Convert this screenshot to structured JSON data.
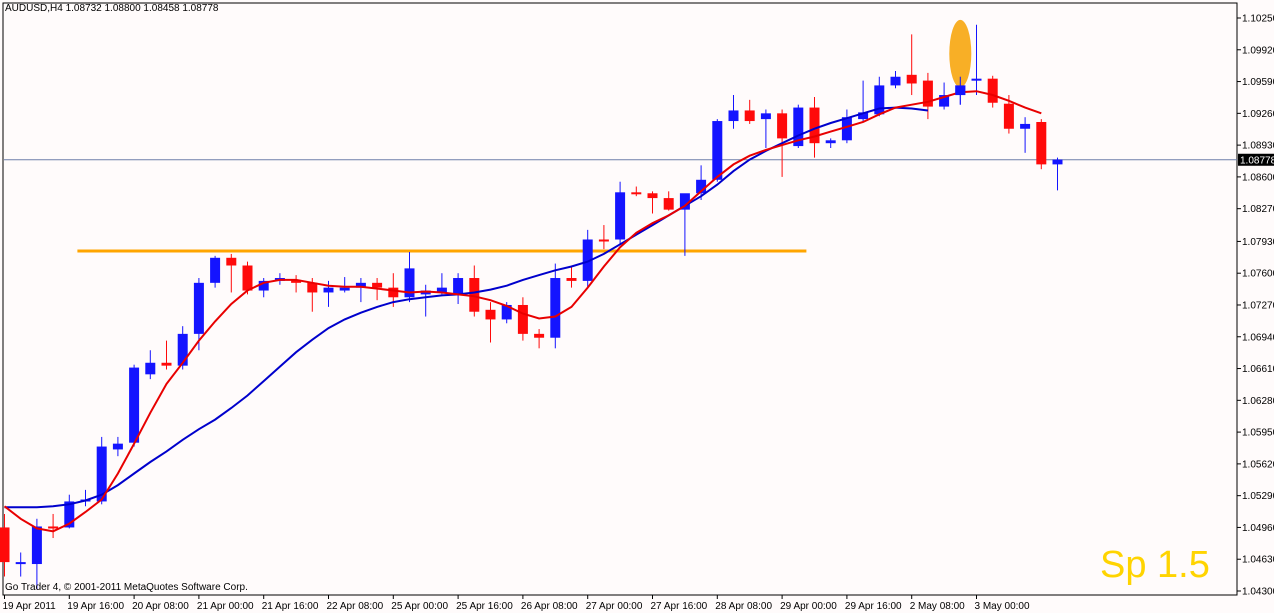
{
  "chart_title": "AUDUSD,H4  1.08732 1.08800 1.08458 1.08778",
  "copyright": "Go Trader 4, © 2001-2011 MetaQuotes Software Corp.",
  "spread_label": "Sp 1.5",
  "current_price_label": "1.08778",
  "colors": {
    "background": "#fffbfb",
    "bull_candle": "#1414ff",
    "bear_candle": "#ff0a0a",
    "fast_ma": "#e80000",
    "slow_ma": "#0000cc",
    "support_line": "#ffa500",
    "highlight_ellipse": "#f7a100",
    "current_price_line": "#6f7ea9",
    "spread_text": "#ffd400"
  },
  "chart_data": {
    "type": "candlestick",
    "symbol": "AUDUSD",
    "timeframe": "H4",
    "ylim": [
      1.043,
      1.1025
    ],
    "y_ticks": [
      "1.10250",
      "1.09920",
      "1.09590",
      "1.09260",
      "1.08930",
      "1.08600",
      "1.08270",
      "1.07930",
      "1.07600",
      "1.07270",
      "1.06940",
      "1.06610",
      "1.06280",
      "1.05950",
      "1.05620",
      "1.05290",
      "1.04960",
      "1.04630",
      "1.04300"
    ],
    "x_ticks": [
      {
        "label": "19 Apr 2011",
        "index": 0
      },
      {
        "label": "19 Apr 16:00",
        "index": 4
      },
      {
        "label": "20 Apr 08:00",
        "index": 8
      },
      {
        "label": "21 Apr 00:00",
        "index": 12
      },
      {
        "label": "21 Apr 16:00",
        "index": 16
      },
      {
        "label": "22 Apr 08:00",
        "index": 20
      },
      {
        "label": "25 Apr 00:00",
        "index": 24
      },
      {
        "label": "25 Apr 16:00",
        "index": 28
      },
      {
        "label": "26 Apr 08:00",
        "index": 32
      },
      {
        "label": "27 Apr 00:00",
        "index": 36
      },
      {
        "label": "27 Apr 16:00",
        "index": 40
      },
      {
        "label": "28 Apr 08:00",
        "index": 44
      },
      {
        "label": "29 Apr 00:00",
        "index": 48
      },
      {
        "label": "29 Apr 16:00",
        "index": 52
      },
      {
        "label": "2 May 08:00",
        "index": 56
      },
      {
        "label": "3 May 00:00",
        "index": 60
      }
    ],
    "candles": [
      {
        "o": 1.0496,
        "h": 1.051,
        "l": 1.0445,
        "c": 1.046
      },
      {
        "o": 1.046,
        "h": 1.047,
        "l": 1.0445,
        "c": 1.046
      },
      {
        "o": 1.0458,
        "h": 1.0505,
        "l": 1.0432,
        "c": 1.0497
      },
      {
        "o": 1.0497,
        "h": 1.051,
        "l": 1.0485,
        "c": 1.0495
      },
      {
        "o": 1.0496,
        "h": 1.053,
        "l": 1.0495,
        "c": 1.0523
      },
      {
        "o": 1.0523,
        "h": 1.0535,
        "l": 1.0518,
        "c": 1.0525
      },
      {
        "o": 1.0523,
        "h": 1.059,
        "l": 1.052,
        "c": 1.058
      },
      {
        "o": 1.0577,
        "h": 1.059,
        "l": 1.057,
        "c": 1.0583
      },
      {
        "o": 1.0584,
        "h": 1.0665,
        "l": 1.058,
        "c": 1.0662
      },
      {
        "o": 1.0655,
        "h": 1.068,
        "l": 1.065,
        "c": 1.0667
      },
      {
        "o": 1.0667,
        "h": 1.069,
        "l": 1.066,
        "c": 1.0664
      },
      {
        "o": 1.0664,
        "h": 1.0705,
        "l": 1.066,
        "c": 1.0697
      },
      {
        "o": 1.0697,
        "h": 1.0755,
        "l": 1.068,
        "c": 1.075
      },
      {
        "o": 1.075,
        "h": 1.0778,
        "l": 1.0745,
        "c": 1.0776
      },
      {
        "o": 1.0776,
        "h": 1.078,
        "l": 1.074,
        "c": 1.0768
      },
      {
        "o": 1.0768,
        "h": 1.0772,
        "l": 1.0738,
        "c": 1.0742
      },
      {
        "o": 1.0742,
        "h": 1.0755,
        "l": 1.0735,
        "c": 1.0752
      },
      {
        "o": 1.0752,
        "h": 1.076,
        "l": 1.0748,
        "c": 1.0755
      },
      {
        "o": 1.0753,
        "h": 1.0758,
        "l": 1.074,
        "c": 1.075
      },
      {
        "o": 1.075,
        "h": 1.0755,
        "l": 1.072,
        "c": 1.074
      },
      {
        "o": 1.074,
        "h": 1.0752,
        "l": 1.0725,
        "c": 1.0745
      },
      {
        "o": 1.0742,
        "h": 1.0756,
        "l": 1.074,
        "c": 1.0745
      },
      {
        "o": 1.0745,
        "h": 1.0755,
        "l": 1.073,
        "c": 1.075
      },
      {
        "o": 1.075,
        "h": 1.0755,
        "l": 1.0732,
        "c": 1.0745
      },
      {
        "o": 1.0745,
        "h": 1.076,
        "l": 1.0725,
        "c": 1.0735
      },
      {
        "o": 1.0735,
        "h": 1.0782,
        "l": 1.073,
        "c": 1.0765
      },
      {
        "o": 1.0738,
        "h": 1.0748,
        "l": 1.0715,
        "c": 1.0742
      },
      {
        "o": 1.074,
        "h": 1.076,
        "l": 1.0738,
        "c": 1.0745
      },
      {
        "o": 1.0738,
        "h": 1.076,
        "l": 1.0728,
        "c": 1.0755
      },
      {
        "o": 1.0755,
        "h": 1.0768,
        "l": 1.0715,
        "c": 1.072
      },
      {
        "o": 1.0722,
        "h": 1.073,
        "l": 1.0688,
        "c": 1.0712
      },
      {
        "o": 1.0712,
        "h": 1.073,
        "l": 1.0708,
        "c": 1.0727
      },
      {
        "o": 1.0727,
        "h": 1.0735,
        "l": 1.069,
        "c": 1.0697
      },
      {
        "o": 1.0697,
        "h": 1.0702,
        "l": 1.0682,
        "c": 1.0693
      },
      {
        "o": 1.0693,
        "h": 1.077,
        "l": 1.0682,
        "c": 1.0755
      },
      {
        "o": 1.0755,
        "h": 1.0768,
        "l": 1.0745,
        "c": 1.0752
      },
      {
        "o": 1.0752,
        "h": 1.0805,
        "l": 1.0745,
        "c": 1.0795
      },
      {
        "o": 1.0795,
        "h": 1.081,
        "l": 1.0785,
        "c": 1.0793
      },
      {
        "o": 1.0795,
        "h": 1.0855,
        "l": 1.079,
        "c": 1.0844
      },
      {
        "o": 1.0844,
        "h": 1.085,
        "l": 1.084,
        "c": 1.0842
      },
      {
        "o": 1.0843,
        "h": 1.0845,
        "l": 1.0822,
        "c": 1.0838
      },
      {
        "o": 1.0838,
        "h": 1.0845,
        "l": 1.0825,
        "c": 1.0826
      },
      {
        "o": 1.0826,
        "h": 1.0842,
        "l": 1.0778,
        "c": 1.0843
      },
      {
        "o": 1.0843,
        "h": 1.0872,
        "l": 1.0836,
        "c": 1.0857
      },
      {
        "o": 1.0857,
        "h": 1.092,
        "l": 1.0855,
        "c": 1.0918
      },
      {
        "o": 1.0918,
        "h": 1.0945,
        "l": 1.091,
        "c": 1.0929
      },
      {
        "o": 1.0929,
        "h": 1.094,
        "l": 1.0915,
        "c": 1.0918
      },
      {
        "o": 1.092,
        "h": 1.093,
        "l": 1.089,
        "c": 1.0926
      },
      {
        "o": 1.0926,
        "h": 1.093,
        "l": 1.086,
        "c": 1.09
      },
      {
        "o": 1.0892,
        "h": 1.0935,
        "l": 1.089,
        "c": 1.0932
      },
      {
        "o": 1.0932,
        "h": 1.0943,
        "l": 1.088,
        "c": 1.0895
      },
      {
        "o": 1.0895,
        "h": 1.09,
        "l": 1.089,
        "c": 1.0898
      },
      {
        "o": 1.0898,
        "h": 1.093,
        "l": 1.0895,
        "c": 1.0922
      },
      {
        "o": 1.092,
        "h": 1.096,
        "l": 1.0918,
        "c": 1.0927
      },
      {
        "o": 1.0925,
        "h": 1.0964,
        "l": 1.0923,
        "c": 1.0955
      },
      {
        "o": 1.0955,
        "h": 1.097,
        "l": 1.0952,
        "c": 1.0964
      },
      {
        "o": 1.0966,
        "h": 1.1008,
        "l": 1.0945,
        "c": 1.0957
      },
      {
        "o": 1.096,
        "h": 1.0968,
        "l": 1.092,
        "c": 1.0933
      },
      {
        "o": 1.0933,
        "h": 1.0958,
        "l": 1.093,
        "c": 1.0945
      },
      {
        "o": 1.0945,
        "h": 1.0964,
        "l": 1.0935,
        "c": 1.0955
      },
      {
        "o": 1.096,
        "h": 1.1018,
        "l": 1.0945,
        "c": 1.0962
      },
      {
        "o": 1.0962,
        "h": 1.0965,
        "l": 1.0932,
        "c": 1.0937
      },
      {
        "o": 1.0936,
        "h": 1.0945,
        "l": 1.0905,
        "c": 1.091
      },
      {
        "o": 1.091,
        "h": 1.0922,
        "l": 1.0885,
        "c": 1.0915
      },
      {
        "o": 1.0917,
        "h": 1.092,
        "l": 1.0868,
        "c": 1.0873
      },
      {
        "o": 1.0873,
        "h": 1.088,
        "l": 1.0846,
        "c": 1.0878
      }
    ],
    "fast_ma": [
      1.0518,
      1.0505,
      1.0495,
      1.0492,
      1.05,
      1.0512,
      1.0525,
      1.0552,
      1.0583,
      1.0615,
      1.0645,
      1.0667,
      1.069,
      1.071,
      1.0728,
      1.0742,
      1.075,
      1.0753,
      1.0753,
      1.075,
      1.0747,
      1.0746,
      1.0746,
      1.0744,
      1.0742,
      1.074,
      1.0741,
      1.074,
      1.0738,
      1.0736,
      1.0732,
      1.0726,
      1.0718,
      1.0713,
      1.0715,
      1.0725,
      1.0745,
      1.0767,
      1.0787,
      1.0802,
      1.0812,
      1.082,
      1.083,
      1.0845,
      1.086,
      1.0873,
      1.0882,
      1.0888,
      1.0893,
      1.0898,
      1.0902,
      1.0907,
      1.0912,
      1.0917,
      1.0925,
      1.0932,
      1.0935,
      1.0938,
      1.0943,
      1.0948,
      1.0949,
      1.0945,
      1.0939,
      1.0932,
      1.0926
    ],
    "slow_ma": [
      1.0517,
      1.0517,
      1.0517,
      1.0518,
      1.052,
      1.0524,
      1.053,
      1.054,
      1.0552,
      1.0564,
      1.0575,
      1.0587,
      1.0598,
      1.0608,
      1.062,
      1.0633,
      1.0648,
      1.0663,
      1.0678,
      1.0691,
      1.0703,
      1.0712,
      1.0719,
      1.0725,
      1.073,
      1.0733,
      1.0735,
      1.0737,
      1.0738,
      1.074,
      1.0743,
      1.0747,
      1.0753,
      1.0758,
      1.0763,
      1.0767,
      1.0772,
      1.078,
      1.079,
      1.08,
      1.081,
      1.082,
      1.083,
      1.084,
      1.0852,
      1.0866,
      1.0878,
      1.0887,
      1.0895,
      1.0903,
      1.091,
      1.0916,
      1.0921,
      1.0926,
      1.0931,
      1.0932,
      1.0931,
      1.0929
    ],
    "support_level": 1.0783,
    "support_range": [
      4.5,
      49.5
    ],
    "current_price": 1.08778,
    "highlight_index": 59,
    "highlight_range": [
      1.0953,
      1.1023
    ]
  }
}
